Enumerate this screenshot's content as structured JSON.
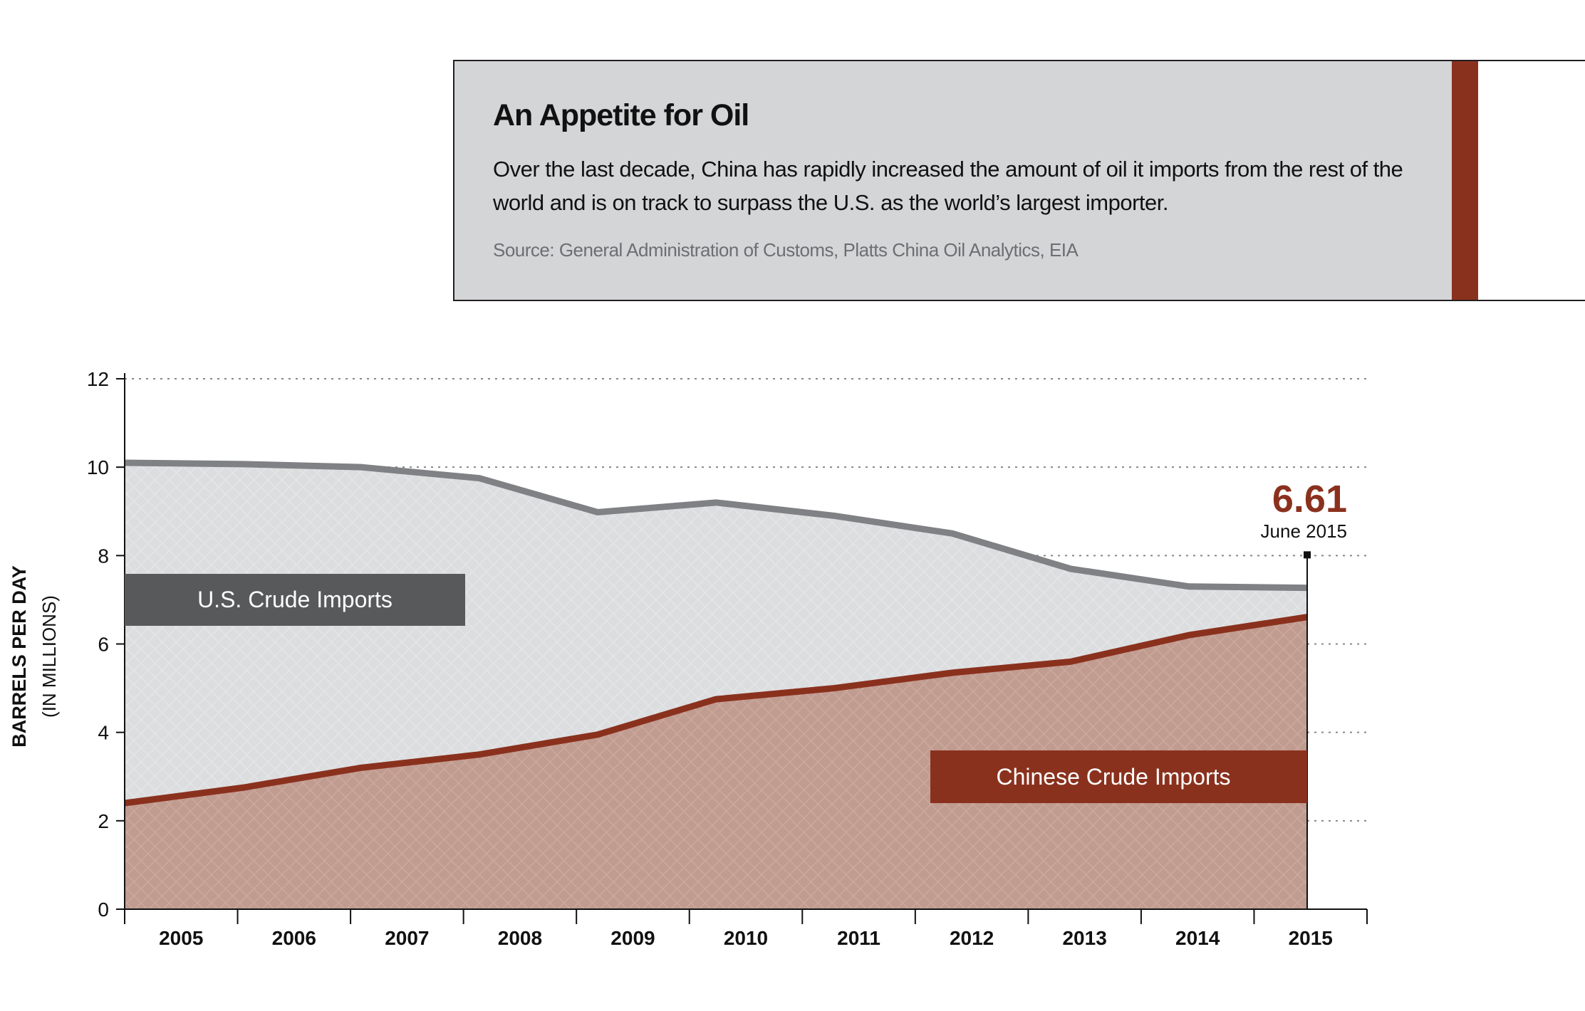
{
  "header": {
    "title": "An Appetite for Oil",
    "description": "Over the last decade, China has rapidly increased the amount of oil it imports from the rest of the world and is on track to surpass the U.S. as the world’s largest importer.",
    "source": "Source: General Administration of Customs, Platts China Oil Analytics, EIA",
    "accent": "#8a311e"
  },
  "chart_data": {
    "type": "area",
    "title": "An Appetite for Oil",
    "ylabel": "BARRELS PER DAY",
    "ylabel_sub": "(IN MILLIONS)",
    "xlabel": "",
    "ylim": [
      0,
      12
    ],
    "yticks": [
      "0",
      "2",
      "4",
      "6",
      "8",
      "10",
      "12"
    ],
    "categories": [
      "2005",
      "2006",
      "2007",
      "2008",
      "2009",
      "2010",
      "2011",
      "2012",
      "2013",
      "2014",
      "2015"
    ],
    "grid": true,
    "series": [
      {
        "name": "U.S. Crude Imports",
        "color": "#808184",
        "fill": "#dcdddf",
        "values": [
          10.1,
          10.07,
          10.0,
          9.75,
          8.98,
          9.2,
          8.9,
          8.5,
          7.7,
          7.3,
          7.27
        ]
      },
      {
        "name": "Chinese Crude Imports",
        "color": "#8a311e",
        "fill": "#c4a095",
        "values": [
          2.4,
          2.75,
          3.2,
          3.5,
          3.95,
          4.75,
          5.0,
          5.35,
          5.6,
          6.2,
          6.61
        ]
      }
    ],
    "annotation": {
      "value": "6.61",
      "label": "June 2015"
    }
  }
}
